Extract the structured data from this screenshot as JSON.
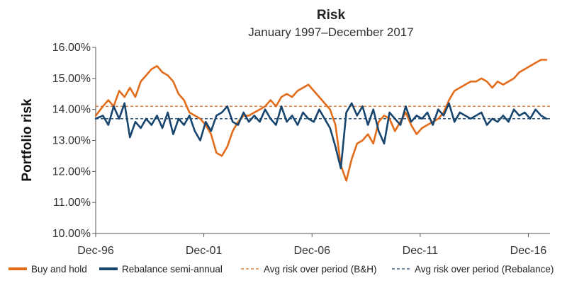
{
  "chart_data": {
    "type": "line",
    "title": "Risk",
    "subtitle": "January 1997–December 2017",
    "ylabel": "Portfolio risk",
    "xlabel": "",
    "ylim": [
      10.0,
      16.0
    ],
    "yticks": [
      "10.00%",
      "11.00%",
      "12.00%",
      "13.00%",
      "14.00%",
      "15.00%",
      "16.00%"
    ],
    "ytick_values": [
      10,
      11,
      12,
      13,
      14,
      15,
      16
    ],
    "xlim": [
      1996.917,
      2017.917
    ],
    "xticks": [
      "Dec-96",
      "Dec-01",
      "Dec-06",
      "Dec-11",
      "Dec-16"
    ],
    "xtick_values": [
      1996.917,
      2001.917,
      2006.917,
      2011.917,
      2016.917
    ],
    "series": [
      {
        "name": "Buy and hold",
        "color": "#e36c1b",
        "x": [
          1996.92,
          1997.25,
          1997.5,
          1997.75,
          1998.0,
          1998.25,
          1998.5,
          1998.75,
          1999.0,
          1999.25,
          1999.5,
          1999.75,
          2000.0,
          2000.25,
          2000.5,
          2000.75,
          2001.0,
          2001.25,
          2001.5,
          2001.75,
          2002.0,
          2002.25,
          2002.5,
          2002.75,
          2003.0,
          2003.25,
          2003.5,
          2003.75,
          2004.0,
          2004.25,
          2004.5,
          2004.75,
          2005.0,
          2005.25,
          2005.5,
          2005.75,
          2006.0,
          2006.25,
          2006.5,
          2006.75,
          2007.0,
          2007.25,
          2007.5,
          2007.75,
          2008.0,
          2008.25,
          2008.5,
          2008.75,
          2009.0,
          2009.25,
          2009.5,
          2009.75,
          2010.0,
          2010.25,
          2010.5,
          2010.75,
          2011.0,
          2011.25,
          2011.5,
          2011.75,
          2012.0,
          2012.25,
          2012.5,
          2012.75,
          2013.0,
          2013.25,
          2013.5,
          2013.75,
          2014.0,
          2014.25,
          2014.5,
          2014.75,
          2015.0,
          2015.25,
          2015.5,
          2015.75,
          2016.0,
          2016.25,
          2016.5,
          2016.75,
          2017.0,
          2017.25,
          2017.5,
          2017.75
        ],
        "values": [
          13.8,
          14.1,
          14.3,
          14.1,
          14.6,
          14.4,
          14.7,
          14.4,
          14.9,
          15.1,
          15.3,
          15.4,
          15.2,
          15.1,
          14.9,
          14.5,
          14.3,
          13.9,
          13.8,
          13.7,
          13.5,
          13.2,
          12.6,
          12.5,
          12.8,
          13.3,
          13.6,
          13.8,
          13.8,
          13.9,
          14.0,
          14.1,
          14.3,
          14.1,
          14.4,
          14.5,
          14.4,
          14.6,
          14.7,
          14.8,
          14.6,
          14.4,
          14.2,
          14.0,
          13.5,
          12.2,
          11.7,
          12.4,
          12.9,
          13.0,
          13.2,
          12.9,
          13.6,
          13.8,
          13.7,
          13.3,
          13.6,
          13.9,
          13.5,
          13.2,
          13.4,
          13.5,
          13.6,
          13.7,
          13.9,
          14.3,
          14.6,
          14.7,
          14.8,
          14.9,
          14.9,
          15.0,
          14.9,
          14.7,
          14.9,
          14.8,
          14.9,
          15.0,
          15.2,
          15.3,
          15.4,
          15.5,
          15.6,
          15.6
        ]
      },
      {
        "name": "Rebalance semi-annual",
        "color": "#17456e",
        "x": [
          1996.92,
          1997.25,
          1997.5,
          1997.75,
          1998.0,
          1998.25,
          1998.5,
          1998.75,
          1999.0,
          1999.25,
          1999.5,
          1999.75,
          2000.0,
          2000.25,
          2000.5,
          2000.75,
          2001.0,
          2001.25,
          2001.5,
          2001.75,
          2002.0,
          2002.25,
          2002.5,
          2002.75,
          2003.0,
          2003.25,
          2003.5,
          2003.75,
          2004.0,
          2004.25,
          2004.5,
          2004.75,
          2005.0,
          2005.25,
          2005.5,
          2005.75,
          2006.0,
          2006.25,
          2006.5,
          2006.75,
          2007.0,
          2007.25,
          2007.5,
          2007.75,
          2008.0,
          2008.25,
          2008.5,
          2008.75,
          2009.0,
          2009.25,
          2009.5,
          2009.75,
          2010.0,
          2010.25,
          2010.5,
          2010.75,
          2011.0,
          2011.25,
          2011.5,
          2011.75,
          2012.0,
          2012.25,
          2012.5,
          2012.75,
          2013.0,
          2013.25,
          2013.5,
          2013.75,
          2014.0,
          2014.25,
          2014.5,
          2014.75,
          2015.0,
          2015.25,
          2015.5,
          2015.75,
          2016.0,
          2016.25,
          2016.5,
          2016.75,
          2017.0,
          2017.25,
          2017.5,
          2017.75
        ],
        "values": [
          13.7,
          13.8,
          13.5,
          14.1,
          13.7,
          14.2,
          13.1,
          13.6,
          13.4,
          13.7,
          13.5,
          13.8,
          13.4,
          13.9,
          13.2,
          13.7,
          13.5,
          13.8,
          13.3,
          13.0,
          13.6,
          13.3,
          13.8,
          13.9,
          14.1,
          13.6,
          13.5,
          13.9,
          13.6,
          13.8,
          13.6,
          14.0,
          13.7,
          13.5,
          14.1,
          13.6,
          13.8,
          13.5,
          13.9,
          13.7,
          13.6,
          14.0,
          13.7,
          13.4,
          12.8,
          12.1,
          13.9,
          14.2,
          13.8,
          14.1,
          13.5,
          14.0,
          13.3,
          12.9,
          13.9,
          13.7,
          13.5,
          14.1,
          13.6,
          13.8,
          13.7,
          13.9,
          13.5,
          14.0,
          13.8,
          14.2,
          13.6,
          13.9,
          13.8,
          13.7,
          13.8,
          13.9,
          13.5,
          13.7,
          13.6,
          13.8,
          13.6,
          14.0,
          13.8,
          13.9,
          13.7,
          14.0,
          13.8,
          13.7
        ]
      }
    ],
    "reference_lines": [
      {
        "name": "Avg risk over period (B&H)",
        "value": 14.1,
        "color": "#e36c1b",
        "style": "dashed"
      },
      {
        "name": "Avg risk over period (Rebalance)",
        "value": 13.7,
        "color": "#17456e",
        "style": "dashed"
      }
    ],
    "legend": {
      "placement": "bottom",
      "entries": [
        {
          "label": "Buy and hold",
          "style": "solid",
          "color": "#e36c1b"
        },
        {
          "label": "Rebalance semi-annual",
          "style": "solid",
          "color": "#17456e"
        },
        {
          "label": "Avg risk over period (B&H)",
          "style": "dashed",
          "color": "#e36c1b"
        },
        {
          "label": "Avg risk over period (Rebalance)",
          "style": "dashed",
          "color": "#17456e"
        }
      ]
    },
    "grid": false
  }
}
